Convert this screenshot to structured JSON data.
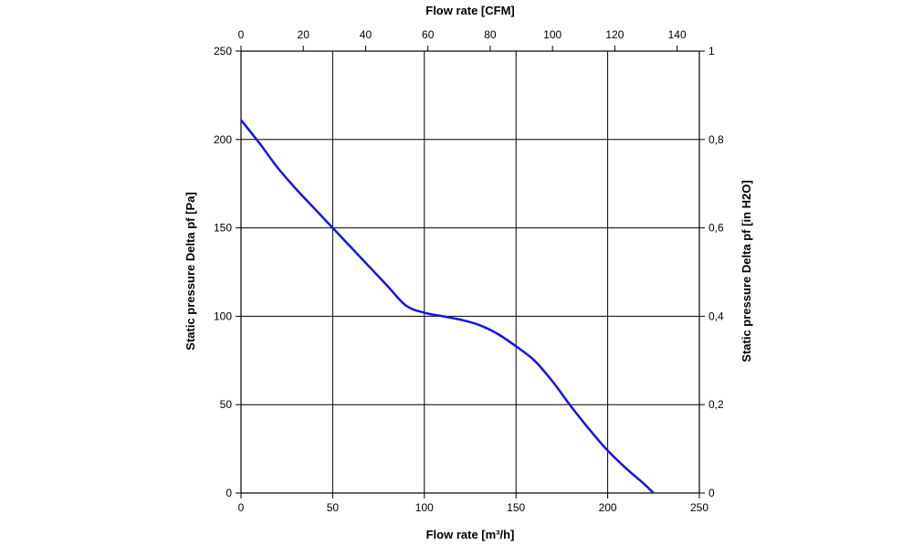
{
  "chart_data": {
    "type": "line",
    "xlabel_bottom": "Flow rate [m³/h]",
    "xlabel_top": "Flow rate [CFM]",
    "ylabel_left": "Static pressure Delta pf [Pa]",
    "ylabel_right": "Static pressure Delta pf [in H2O]",
    "xlim": [
      0,
      250
    ],
    "ylim": [
      0,
      250
    ],
    "x_ticks": [
      "0",
      "50",
      "100",
      "150",
      "200",
      "250"
    ],
    "x_top_ticks": [
      "0",
      "20",
      "40",
      "60",
      "80",
      "100",
      "120",
      "140"
    ],
    "y_ticks": [
      "0",
      "50",
      "100",
      "150",
      "200",
      "250"
    ],
    "y_right_ticks": [
      "0",
      "0,2",
      "0,4",
      "0,6",
      "0,8",
      "1"
    ],
    "grid": true,
    "series": [
      {
        "color": "#1414e6",
        "x": [
          0,
          10,
          20,
          30,
          40,
          50,
          60,
          70,
          80,
          90,
          100,
          110,
          120,
          130,
          140,
          150,
          160,
          170,
          180,
          190,
          200,
          210,
          220,
          225
        ],
        "y": [
          211,
          198,
          184,
          172,
          161,
          150,
          139,
          128,
          117,
          106,
          102,
          100,
          98,
          95,
          90,
          83,
          75,
          63,
          49,
          36,
          24,
          14,
          5,
          0
        ]
      }
    ]
  }
}
